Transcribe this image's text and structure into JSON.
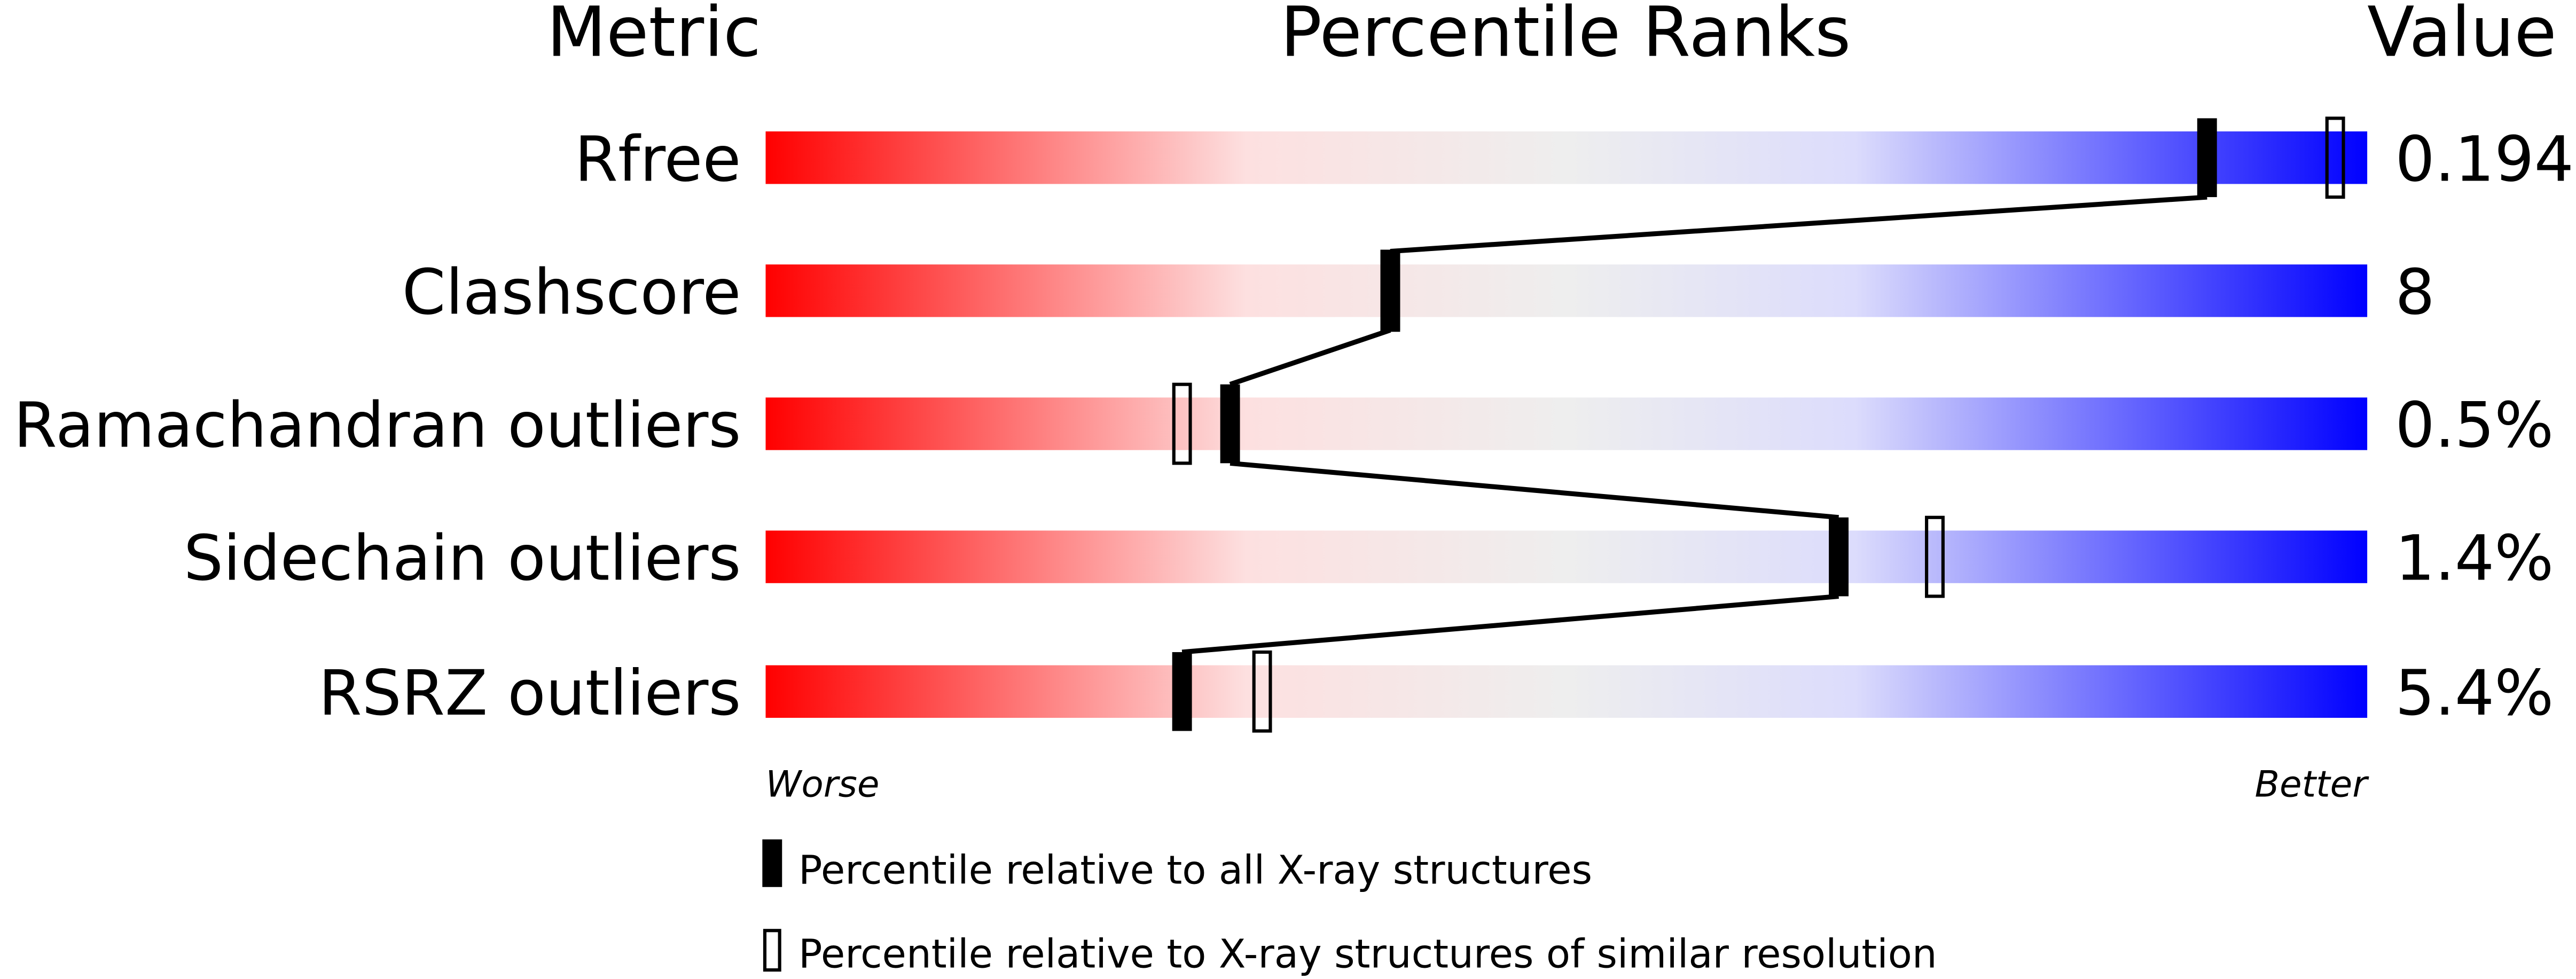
{
  "chart_data": {
    "type": "percentile-slider",
    "headers": {
      "metric": "Metric",
      "percentile": "Percentile Ranks",
      "value": "Value"
    },
    "xlim": [
      0,
      100
    ],
    "axis_labels": {
      "left": "Worse",
      "right": "Better"
    },
    "gradient_colors": [
      "#ff0000",
      "#fde0e0",
      "#eeeeee",
      "#dcdcfc",
      "#0000ff"
    ],
    "rows": [
      {
        "metric": "Rfree",
        "value": "0.194",
        "percentile_all": 90,
        "percentile_similar": 98
      },
      {
        "metric": "Clashscore",
        "value": "8",
        "percentile_all": 39,
        "percentile_similar": 39
      },
      {
        "metric": "Ramachandran outliers",
        "value": "0.5%",
        "percentile_all": 29,
        "percentile_similar": 26
      },
      {
        "metric": "Sidechain outliers",
        "value": "1.4%",
        "percentile_all": 67,
        "percentile_similar": 73
      },
      {
        "metric": "RSRZ outliers",
        "value": "5.4%",
        "percentile_all": 26,
        "percentile_similar": 31
      }
    ],
    "legend": [
      {
        "marker": "filled",
        "label": "Percentile relative to all X-ray structures"
      },
      {
        "marker": "hollow",
        "label": "Percentile relative to X-ray structures of similar resolution"
      }
    ]
  }
}
